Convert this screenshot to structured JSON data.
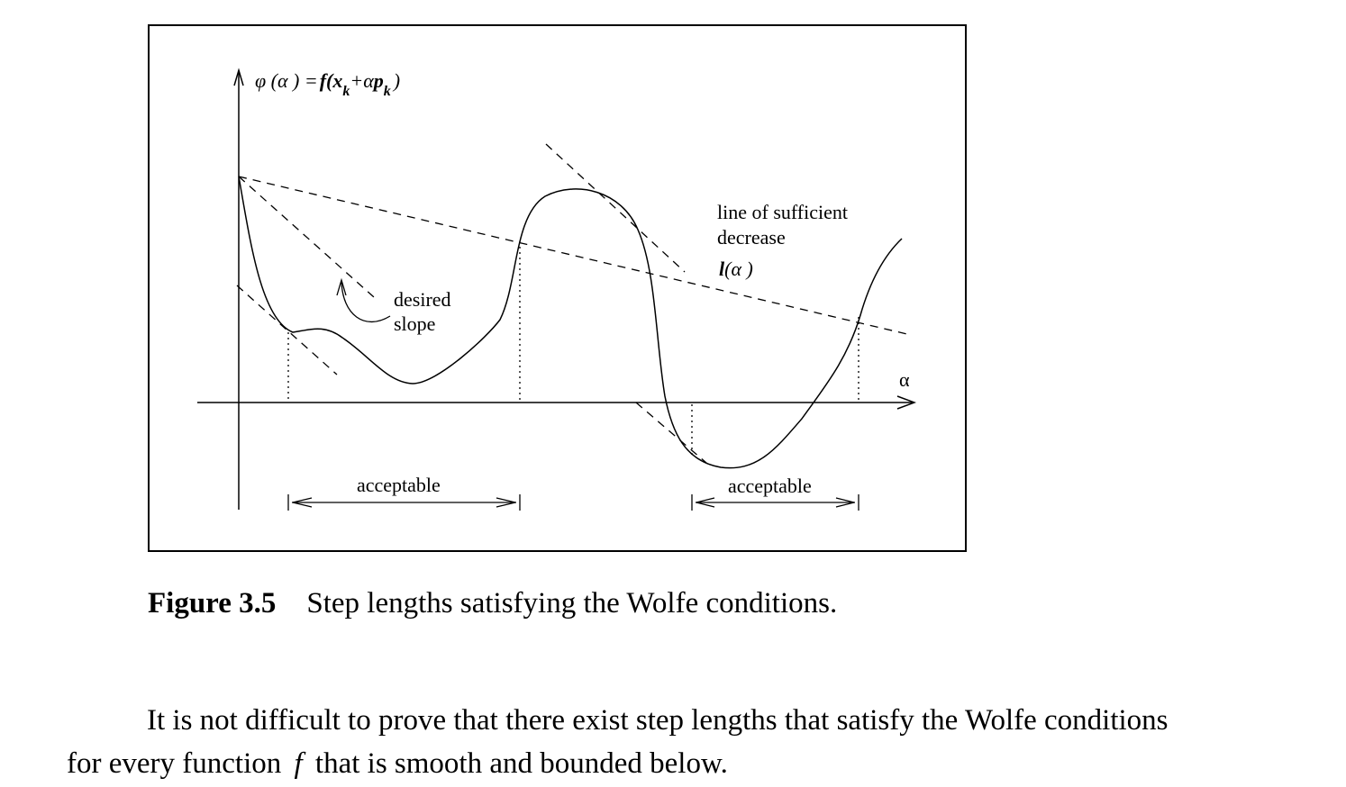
{
  "figure": {
    "labels": {
      "phi_prefix": "φ (α ) =",
      "phi_f": "f(x",
      "phi_sub_k1": "k",
      "phi_plus": "+α",
      "phi_p": "p",
      "phi_sub_k2": "k",
      "phi_close": ")",
      "alpha": "α",
      "desired_line1": "desired",
      "desired_line2": "slope",
      "sufficient_line1": "line of sufficient",
      "sufficient_line2": "decrease",
      "l_func": "l",
      "l_arg": "(α )",
      "acceptable_left": "acceptable",
      "acceptable_right": "acceptable"
    }
  },
  "caption": {
    "label": "Figure 3.5",
    "text": "Step lengths satisfying the Wolfe conditions."
  },
  "paragraph": {
    "line1": "It is not difficult to prove that there exist step lengths that satisfy the Wolfe conditions",
    "line2_pre": "for every function",
    "line2_var": "f",
    "line2_post": "that is smooth and bounded below."
  }
}
